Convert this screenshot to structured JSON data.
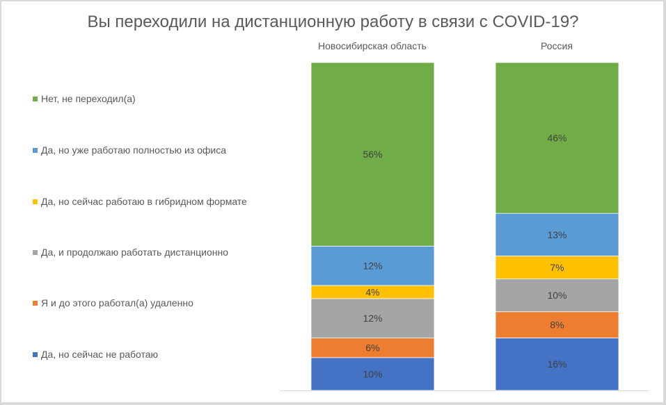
{
  "chart_data": {
    "type": "bar",
    "stacked": true,
    "orientation": "vertical",
    "title": "Вы переходили на дистанционную работу в связи с COVID-19?",
    "categories": [
      "Новосибирская область",
      "Россия"
    ],
    "category_axis_position": "top",
    "ylim": [
      0,
      100
    ],
    "grid": false,
    "legend_position": "left",
    "series": [
      {
        "name": "Да, но сейчас не работаю",
        "color": "#4472C4",
        "values": [
          10,
          16
        ],
        "labels": [
          "10%",
          "16%"
        ]
      },
      {
        "name": "Я и до этого работал(а) удаленно",
        "color": "#ED7D31",
        "values": [
          6,
          8
        ],
        "labels": [
          "6%",
          "8%"
        ]
      },
      {
        "name": "Да, и продолжаю работать дистанционно",
        "color": "#A5A5A5",
        "values": [
          12,
          10
        ],
        "labels": [
          "12%",
          "10%"
        ]
      },
      {
        "name": "Да, но сейчас работаю в гибридном формате",
        "color": "#FFC000",
        "values": [
          4,
          7
        ],
        "labels": [
          "4%",
          "7%"
        ]
      },
      {
        "name": "Да, но уже работаю полностью из офиса",
        "color": "#5B9BD5",
        "values": [
          12,
          13
        ],
        "labels": [
          "12%",
          "13%"
        ]
      },
      {
        "name": "Нет, не переходил(а)",
        "color": "#70AD47",
        "values": [
          56,
          46
        ],
        "labels": [
          "56%",
          "46%"
        ]
      }
    ]
  }
}
